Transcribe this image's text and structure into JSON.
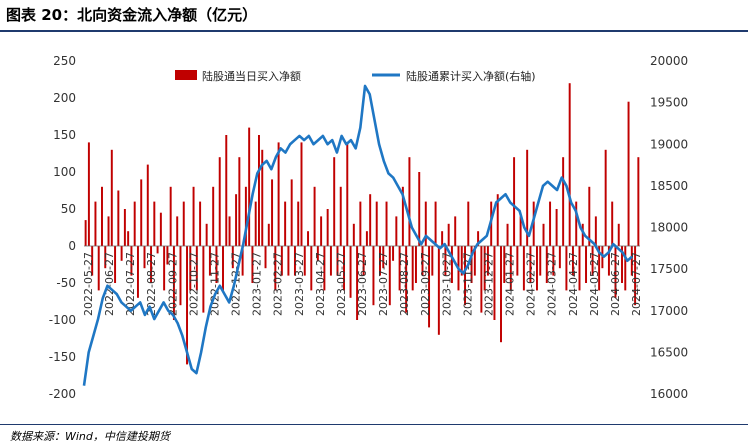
{
  "header": {
    "title": "图表 20：北向资金流入净额（亿元）"
  },
  "footer": {
    "source": "数据来源：Wind，中信建投期货"
  },
  "chart_data": {
    "type": "bar+line",
    "title": "",
    "xlabel": "",
    "ylabel_left": "",
    "ylabel_right": "",
    "ylim_left": [
      -200,
      250
    ],
    "yticks_left": [
      -200,
      -150,
      -100,
      -50,
      0,
      50,
      100,
      150,
      200,
      250
    ],
    "ylim_right": [
      16000,
      20000
    ],
    "yticks_right": [
      16000,
      16500,
      17000,
      17500,
      18000,
      18500,
      19000,
      19500,
      20000
    ],
    "xtick_labels": [
      "2022-05-27",
      "2022-06-27",
      "2022-07-27",
      "2022-08-27",
      "2022-09-27",
      "2022-10-27",
      "2022-11-27",
      "2022-12-27",
      "2023-01-27",
      "2023-02-27",
      "2023-03-27",
      "2023-04-27",
      "2023-05-27",
      "2023-06-27",
      "2023-07-27",
      "2023-08-27",
      "2023-09-27",
      "2023-10-27",
      "2023-11-27",
      "2023-12-27",
      "2024-01-27",
      "2024-02-27",
      "2024-03-27",
      "2024-04-27",
      "2024-05-27",
      "2024-06-27",
      "2024-07-27"
    ],
    "legend_position": "top",
    "grid": false,
    "series": [
      {
        "name": "陆股通当日买入净额",
        "axis": "left",
        "kind": "bar",
        "color": "#c00000",
        "values": [
          35,
          140,
          -40,
          60,
          -60,
          80,
          -30,
          40,
          130,
          -50,
          75,
          -20,
          50,
          20,
          -40,
          60,
          -70,
          90,
          -30,
          110,
          -50,
          60,
          -10,
          45,
          -60,
          -25,
          80,
          -100,
          40,
          -80,
          60,
          -160,
          -60,
          80,
          -60,
          60,
          -90,
          30,
          -40,
          80,
          -50,
          120,
          -60,
          150,
          40,
          -30,
          70,
          120,
          -40,
          80,
          160,
          -50,
          60,
          150,
          130,
          -30,
          30,
          90,
          -60,
          140,
          -40,
          60,
          -40,
          90,
          -40,
          60,
          140,
          -40,
          20,
          -60,
          80,
          -20,
          40,
          -60,
          50,
          -40,
          120,
          -40,
          80,
          -60,
          140,
          -70,
          30,
          -100,
          60,
          -40,
          20,
          70,
          -80,
          60,
          -40,
          -30,
          60,
          -80,
          -20,
          40,
          -60,
          80,
          -90,
          120,
          -60,
          -50,
          100,
          -40,
          60,
          -110,
          -40,
          60,
          -120,
          20,
          -40,
          30,
          -50,
          40,
          -60,
          -40,
          -80,
          60,
          -50,
          -40,
          20,
          -90,
          -60,
          -40,
          60,
          -100,
          70,
          -130,
          -50,
          30,
          -60,
          120,
          -40,
          40,
          -60,
          130,
          -50,
          60,
          -60,
          -40,
          30,
          -50,
          60,
          -40,
          50,
          -30,
          120,
          -60,
          220,
          -40,
          60,
          -60,
          30,
          -50,
          80,
          -40,
          40,
          -60,
          -30,
          130,
          -40,
          60,
          -70,
          30,
          -50,
          -60,
          195,
          -40,
          -80,
          120
        ]
      },
      {
        "name": "陆股通累计买入净额(右轴)",
        "axis": "right",
        "kind": "line",
        "color": "#1f77c4",
        "values": [
          16100,
          16500,
          16700,
          16900,
          17150,
          17300,
          17250,
          17200,
          17100,
          17050,
          17000,
          17050,
          17100,
          16950,
          17050,
          16900,
          17000,
          17100,
          17000,
          16950,
          16850,
          16700,
          16500,
          16300,
          16250,
          16500,
          16800,
          17050,
          17200,
          17300,
          17200,
          17100,
          17300,
          17550,
          17800,
          18100,
          18400,
          18650,
          18750,
          18800,
          18700,
          18850,
          18950,
          18900,
          19000,
          19050,
          19100,
          19050,
          19100,
          19000,
          19050,
          19100,
          19000,
          19050,
          18900,
          19100,
          19000,
          19050,
          18950,
          19200,
          19700,
          19600,
          19300,
          19000,
          18800,
          18650,
          18600,
          18500,
          18400,
          18200,
          18000,
          17900,
          17800,
          17900,
          17850,
          17800,
          17750,
          17800,
          17700,
          17600,
          17500,
          17450,
          17550,
          17700,
          17800,
          17850,
          17900,
          18100,
          18300,
          18350,
          18400,
          18300,
          18250,
          18200,
          18000,
          17900,
          18100,
          18300,
          18500,
          18550,
          18500,
          18450,
          18600,
          18500,
          18300,
          18200,
          18000,
          17900,
          17850,
          17800,
          17700,
          17650,
          17700,
          17800,
          17750,
          17700,
          17600,
          17650
        ]
      }
    ]
  }
}
